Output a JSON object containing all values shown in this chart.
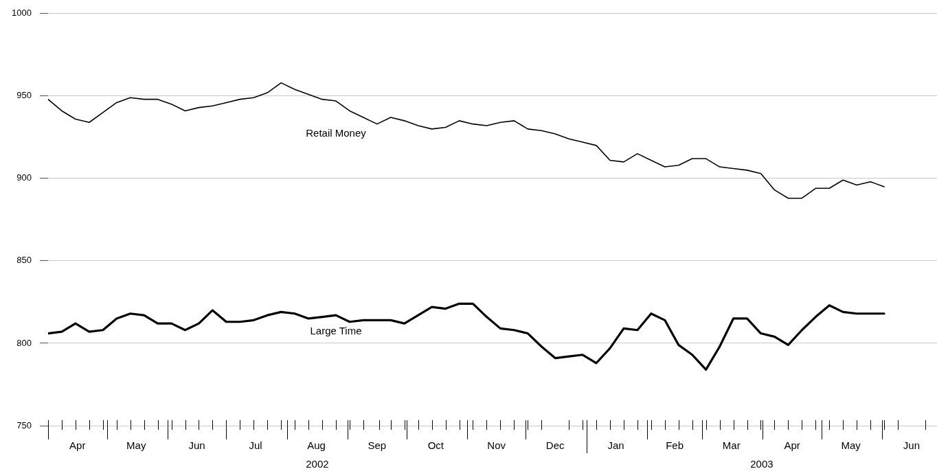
{
  "chart_data": {
    "type": "line",
    "x": [
      "2002-04-01",
      "2002-04-08",
      "2002-04-15",
      "2002-04-22",
      "2002-04-29",
      "2002-05-06",
      "2002-05-13",
      "2002-05-20",
      "2002-05-27",
      "2002-06-03",
      "2002-06-10",
      "2002-06-17",
      "2002-06-24",
      "2002-07-01",
      "2002-07-08",
      "2002-07-15",
      "2002-07-22",
      "2002-07-29",
      "2002-08-05",
      "2002-08-12",
      "2002-08-19",
      "2002-08-26",
      "2002-09-02",
      "2002-09-09",
      "2002-09-16",
      "2002-09-23",
      "2002-09-30",
      "2002-10-07",
      "2002-10-14",
      "2002-10-21",
      "2002-10-28",
      "2002-11-04",
      "2002-11-11",
      "2002-11-18",
      "2002-11-25",
      "2002-12-02",
      "2002-12-09",
      "2002-12-16",
      "2002-12-23",
      "2002-12-30",
      "2003-01-06",
      "2003-01-13",
      "2003-01-20",
      "2003-01-27",
      "2003-02-03",
      "2003-02-10",
      "2003-02-17",
      "2003-02-24",
      "2003-03-03",
      "2003-03-10",
      "2003-03-17",
      "2003-03-24",
      "2003-03-31",
      "2003-04-07",
      "2003-04-14",
      "2003-04-21",
      "2003-04-28",
      "2003-05-05",
      "2003-05-12",
      "2003-05-19",
      "2003-05-26",
      "2003-06-02"
    ],
    "series": [
      {
        "name": "Retail Money",
        "color": "#000000",
        "values": [
          948,
          941,
          936,
          934,
          940,
          946,
          949,
          948,
          948,
          945,
          941,
          943,
          944,
          946,
          948,
          949,
          952,
          958,
          954,
          951,
          948,
          947,
          941,
          937,
          933,
          937,
          935,
          932,
          930,
          931,
          935,
          933,
          932,
          934,
          935,
          930,
          929,
          927,
          924,
          922,
          920,
          911,
          910,
          915,
          911,
          907,
          908,
          912,
          912,
          907,
          906,
          905,
          903,
          893,
          888,
          888,
          894,
          894,
          899,
          896,
          898,
          895
        ]
      },
      {
        "name": "Large Time",
        "color": "#000000",
        "values": [
          806,
          807,
          812,
          807,
          808,
          815,
          818,
          817,
          812,
          812,
          808,
          812,
          820,
          813,
          813,
          814,
          817,
          819,
          818,
          815,
          816,
          817,
          813,
          814,
          814,
          814,
          812,
          817,
          822,
          821,
          824,
          824,
          816,
          809,
          808,
          806,
          798,
          791,
          792,
          793,
          788,
          797,
          809,
          808,
          818,
          814,
          799,
          793,
          784,
          798,
          815,
          815,
          806,
          804,
          799,
          808,
          816,
          823,
          819,
          818,
          818,
          818
        ]
      }
    ],
    "xlim": [
      "2002-04-01",
      "2003-06-29"
    ],
    "xticks": [
      {
        "value": "2002-04-01",
        "label": null
      },
      {
        "value": "2002-04-08",
        "label": null
      },
      {
        "value": "2002-04-15",
        "label": null
      },
      {
        "value": "2002-04-16",
        "label": "Apr"
      },
      {
        "value": "2002-04-22",
        "label": null
      },
      {
        "value": "2002-04-29",
        "label": null
      },
      {
        "value": "2002-05-01",
        "label": null
      },
      {
        "value": "2002-05-06",
        "label": null
      },
      {
        "value": "2002-05-13",
        "label": null
      },
      {
        "value": "2002-05-16",
        "label": "May"
      },
      {
        "value": "2002-05-20",
        "label": null
      },
      {
        "value": "2002-05-27",
        "label": null
      },
      {
        "value": "2002-06-01",
        "label": null
      },
      {
        "value": "2002-06-03",
        "label": null
      },
      {
        "value": "2002-06-10",
        "label": null
      },
      {
        "value": "2002-06-16",
        "label": "Jun"
      },
      {
        "value": "2002-06-17",
        "label": null
      },
      {
        "value": "2002-06-24",
        "label": null
      },
      {
        "value": "2002-07-01",
        "label": null
      },
      {
        "value": "2002-07-08",
        "label": null
      },
      {
        "value": "2002-07-15",
        "label": null
      },
      {
        "value": "2002-07-16",
        "label": "Jul"
      },
      {
        "value": "2002-07-22",
        "label": null
      },
      {
        "value": "2002-07-29",
        "label": null
      },
      {
        "value": "2002-08-01",
        "label": null
      },
      {
        "value": "2002-08-05",
        "label": null
      },
      {
        "value": "2002-08-12",
        "label": null
      },
      {
        "value": "2002-08-16",
        "label": "Aug"
      },
      {
        "value": "2002-08-19",
        "label": null
      },
      {
        "value": "2002-08-26",
        "label": null
      },
      {
        "value": "2002-09-01",
        "label": null
      },
      {
        "value": "2002-09-02",
        "label": null
      },
      {
        "value": "2002-09-09",
        "label": null
      },
      {
        "value": "2002-09-16",
        "label": "Sep"
      },
      {
        "value": "2002-09-17",
        "label": null
      },
      {
        "value": "2002-09-23",
        "label": null
      },
      {
        "value": "2002-09-30",
        "label": null
      },
      {
        "value": "2002-10-01",
        "label": null
      },
      {
        "value": "2002-10-07",
        "label": null
      },
      {
        "value": "2002-10-14",
        "label": null
      },
      {
        "value": "2002-10-16",
        "label": "Oct"
      },
      {
        "value": "2002-10-21",
        "label": null
      },
      {
        "value": "2002-10-28",
        "label": null
      },
      {
        "value": "2002-11-01",
        "label": null
      },
      {
        "value": "2002-11-04",
        "label": null
      },
      {
        "value": "2002-11-11",
        "label": null
      },
      {
        "value": "2002-11-16",
        "label": "Nov"
      },
      {
        "value": "2002-11-18",
        "label": null
      },
      {
        "value": "2002-11-25",
        "label": null
      },
      {
        "value": "2002-12-01",
        "label": null
      },
      {
        "value": "2002-12-02",
        "label": null
      },
      {
        "value": "2002-12-09",
        "label": null
      },
      {
        "value": "2002-12-16",
        "label": "Dec"
      },
      {
        "value": "2002-12-23",
        "label": null
      },
      {
        "value": "2002-12-30",
        "label": null
      },
      {
        "value": "2003-01-01",
        "label": null
      },
      {
        "value": "2003-01-06",
        "label": null
      },
      {
        "value": "2003-01-13",
        "label": null
      },
      {
        "value": "2003-01-16",
        "label": "Jan"
      },
      {
        "value": "2003-01-20",
        "label": null
      },
      {
        "value": "2003-01-27",
        "label": null
      },
      {
        "value": "2003-02-01",
        "label": null
      },
      {
        "value": "2003-02-03",
        "label": null
      },
      {
        "value": "2003-02-10",
        "label": null
      },
      {
        "value": "2003-02-15",
        "label": "Feb"
      },
      {
        "value": "2003-02-17",
        "label": null
      },
      {
        "value": "2003-02-24",
        "label": null
      },
      {
        "value": "2003-03-01",
        "label": null
      },
      {
        "value": "2003-03-03",
        "label": null
      },
      {
        "value": "2003-03-10",
        "label": null
      },
      {
        "value": "2003-03-16",
        "label": "Mar"
      },
      {
        "value": "2003-03-17",
        "label": null
      },
      {
        "value": "2003-03-24",
        "label": null
      },
      {
        "value": "2003-03-31",
        "label": null
      },
      {
        "value": "2003-04-01",
        "label": null
      },
      {
        "value": "2003-04-07",
        "label": null
      },
      {
        "value": "2003-04-14",
        "label": null
      },
      {
        "value": "2003-04-16",
        "label": "Apr"
      },
      {
        "value": "2003-04-21",
        "label": null
      },
      {
        "value": "2003-04-28",
        "label": null
      },
      {
        "value": "2003-05-01",
        "label": null
      },
      {
        "value": "2003-05-05",
        "label": null
      },
      {
        "value": "2003-05-12",
        "label": null
      },
      {
        "value": "2003-05-16",
        "label": "May"
      },
      {
        "value": "2003-05-19",
        "label": null
      },
      {
        "value": "2003-05-26",
        "label": null
      },
      {
        "value": "2003-06-01",
        "label": null
      },
      {
        "value": "2003-06-02",
        "label": null
      },
      {
        "value": "2003-06-09",
        "label": null
      },
      {
        "value": "2003-06-16",
        "label": "Jun"
      },
      {
        "value": "2003-06-23",
        "label": null
      }
    ],
    "annotations": [
      "2002",
      "2003"
    ],
    "ylim": [
      750,
      1000
    ],
    "yticks": [
      750,
      800,
      850,
      900,
      950,
      1000
    ],
    "grid": "y",
    "legend": false,
    "marker": "none",
    "line_style": "solid"
  }
}
